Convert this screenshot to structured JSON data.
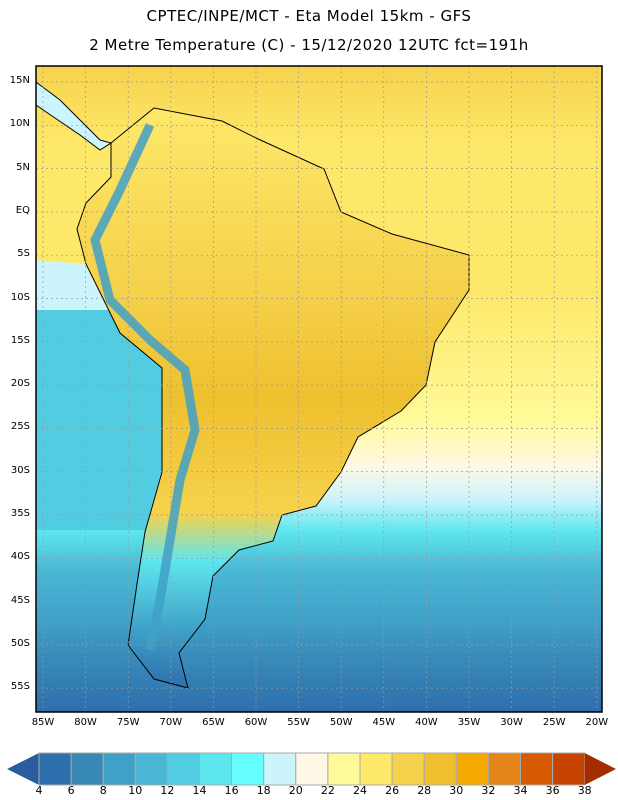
{
  "header": {
    "line1": "CPTEC/INPE/MCT -  Eta Model 15km - GFS",
    "line2": "2 Metre Temperature (C) - 15/12/2020 12UTC fct=191h"
  },
  "map": {
    "lat_labels": [
      "15N",
      "10N",
      "5N",
      "EQ",
      "5S",
      "10S",
      "15S",
      "20S",
      "25S",
      "30S",
      "35S",
      "40S",
      "45S",
      "50S",
      "55S"
    ],
    "lon_labels": [
      "85W",
      "80W",
      "75W",
      "70W",
      "65W",
      "60W",
      "55W",
      "50W",
      "45W",
      "40W",
      "35W",
      "30W",
      "25W",
      "20W"
    ]
  },
  "colorbar": {
    "labels": [
      "4",
      "6",
      "8",
      "10",
      "12",
      "14",
      "16",
      "18",
      "20",
      "22",
      "24",
      "26",
      "28",
      "30",
      "32",
      "34",
      "36",
      "38"
    ],
    "below_color": "#2a5c9e",
    "colors": [
      "#2e6fae",
      "#3889b8",
      "#3fa0c8",
      "#4ab8d4",
      "#52cce0",
      "#5ee6ee",
      "#66ffff",
      "#ccf4fc",
      "#fff8e6",
      "#fffa99",
      "#fee86a",
      "#f6d24c",
      "#eec02f",
      "#f4aa00",
      "#e6861a",
      "#d75a00",
      "#c64400"
    ],
    "above_color": "#a32d00"
  }
}
